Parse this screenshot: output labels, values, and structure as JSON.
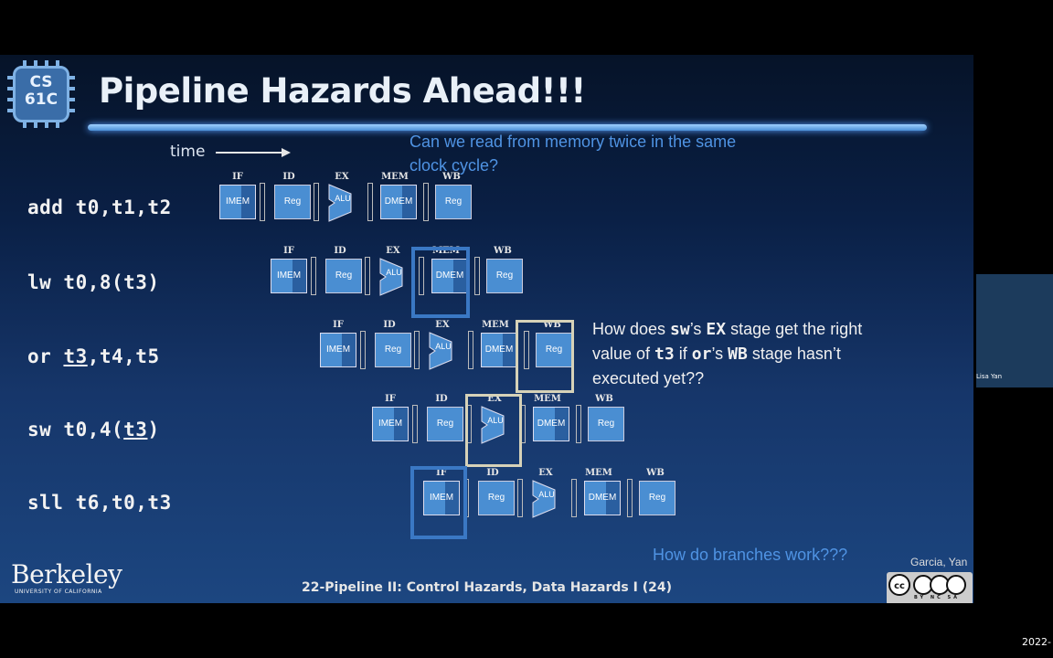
{
  "slide": {
    "logo_text": "CS\n61C",
    "title": "Pipeline Hazards Ahead!!!",
    "time_label": "time",
    "question_memory": "Can we read from memory twice in the same clock cycle?",
    "question_sw_a": "How does ",
    "question_sw_code1": "sw",
    "question_sw_b": "’s ",
    "question_sw_code2": "EX",
    "question_sw_c": " stage get the right value of ",
    "question_sw_code3": "t3",
    "question_sw_d": " if ",
    "question_sw_code4": "or",
    "question_sw_e": "’s ",
    "question_sw_code5": "WB",
    "question_sw_f": " stage hasn’t executed yet??",
    "question_branch": "How do branches work???",
    "instructions": [
      {
        "a": "add t0,t1,t2"
      },
      {
        "a": "lw t0,8(t3)"
      },
      {
        "a": "or ",
        "u": "t3",
        "b": ",t4,t5"
      },
      {
        "a": "sw t0,4(",
        "u": "t3",
        "b": ")"
      },
      {
        "a": "sll t6,t0,t3"
      }
    ],
    "stage_labels": [
      "IF",
      "ID",
      "EX",
      "MEM",
      "WB"
    ],
    "unit_labels": {
      "imem": "IMEM",
      "reg": "Reg",
      "alu": "ALU",
      "dmem": "DMEM"
    },
    "footer": "22-Pipeline II: Control Hazards, Data Hazards I (24)",
    "berkeley": "Berkeley",
    "berkeley_sub": "UNIVERSITY OF CALIFORNIA",
    "authors": "Garcia, Yan",
    "cc_tags": "BY NC SA",
    "cc_icon": "creative-commons-icon"
  },
  "video": {
    "name": "Lisa Yan"
  },
  "date": "2022-"
}
